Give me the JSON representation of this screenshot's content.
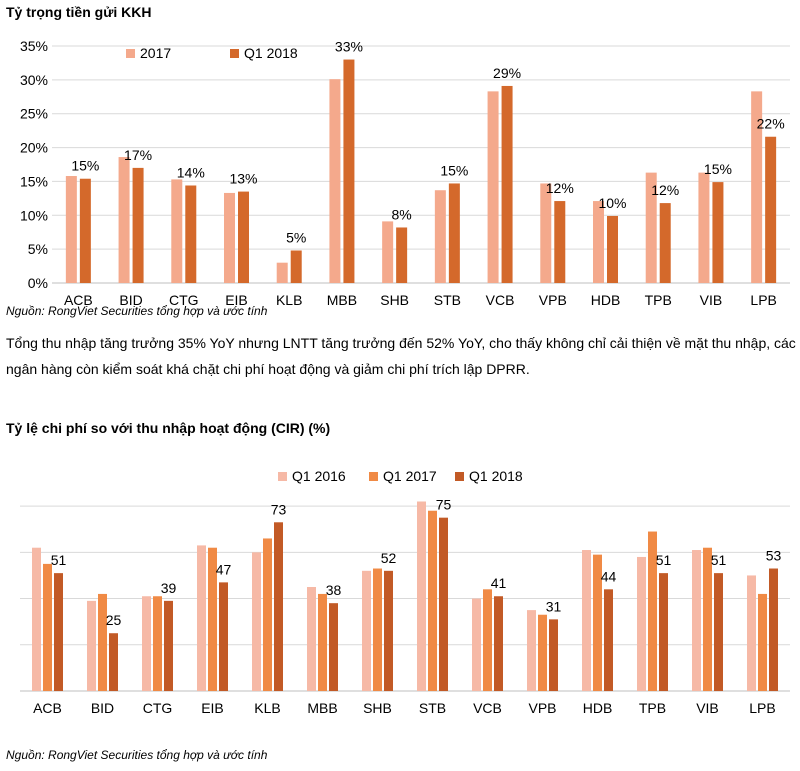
{
  "charts": {
    "chart1": {
      "heading": "Tỷ trọng tiền gửi KKH",
      "source": "Nguồn: RongViet Securities tổng hợp và ước tính"
    },
    "chart2": {
      "heading": "Tỷ lệ chi phí so với thu nhập hoạt động (CIR) (%)",
      "source": "Nguồn: RongViet Securities tổng hợp và ước tính"
    }
  },
  "paragraph": "Tổng thu nhập tăng trưởng 35% YoY nhưng LNTT tăng trưởng đến 52% YoY, cho thấy không chỉ cải thiện về mặt thu nhập, các ngân hàng còn kiểm soát khá chặt chi phí hoạt động và giảm chi phí trích lập DPRR.",
  "chart_data": [
    {
      "type": "bar",
      "title": "Tỷ trọng tiền gửi KKH",
      "categories": [
        "ACB",
        "BID",
        "CTG",
        "EIB",
        "KLB",
        "MBB",
        "SHB",
        "STB",
        "VCB",
        "VPB",
        "HDB",
        "TPB",
        "VIB",
        "LPB"
      ],
      "series": [
        {
          "name": "2017",
          "color": "#f4a98c",
          "values": [
            15.8,
            18.6,
            15.3,
            13.3,
            3.0,
            30.1,
            9.1,
            13.7,
            28.3,
            14.7,
            12.1,
            16.3,
            16.3,
            28.3
          ]
        },
        {
          "name": "Q1 2018",
          "color": "#d4692b",
          "values": [
            15.4,
            17.0,
            14.4,
            13.5,
            4.8,
            33.0,
            8.2,
            14.7,
            29.1,
            12.1,
            9.9,
            11.8,
            14.9,
            21.6
          ]
        }
      ],
      "data_labels": [
        "15%",
        "17%",
        "14%",
        "13%",
        "5%",
        "33%",
        "8%",
        "15%",
        "29%",
        "12%",
        "10%",
        "12%",
        "15%",
        "22%"
      ],
      "ylim": [
        0,
        35
      ],
      "yticks": [
        0,
        5,
        10,
        15,
        20,
        25,
        30,
        35
      ],
      "ytick_labels": [
        "0%",
        "5%",
        "10%",
        "15%",
        "20%",
        "25%",
        "30%",
        "35%"
      ],
      "grid": true,
      "legend": "top-left"
    },
    {
      "type": "bar",
      "title": "Tỷ lệ chi phí so với thu nhập hoạt động (CIR) (%)",
      "categories": [
        "ACB",
        "BID",
        "CTG",
        "EIB",
        "KLB",
        "MBB",
        "SHB",
        "STB",
        "VCB",
        "VPB",
        "HDB",
        "TPB",
        "VIB",
        "LPB"
      ],
      "series": [
        {
          "name": "Q1 2016",
          "color": "#f6b9a6",
          "values": [
            62,
            39,
            41,
            63,
            60,
            45,
            52,
            82,
            40,
            35,
            61,
            58,
            61,
            50
          ]
        },
        {
          "name": "Q1 2017",
          "color": "#f08a45",
          "values": [
            55,
            42,
            41,
            62,
            66,
            42,
            53,
            78,
            44,
            33,
            59,
            69,
            62,
            42
          ]
        },
        {
          "name": "Q1 2018",
          "color": "#c25a26",
          "values": [
            51,
            25,
            39,
            47,
            73,
            38,
            52,
            75,
            41,
            31,
            44,
            51,
            51,
            53
          ]
        }
      ],
      "data_labels": [
        "51",
        "25",
        "39",
        "47",
        "73",
        "38",
        "52",
        "75",
        "41",
        "31",
        "44",
        "51",
        "51",
        "53"
      ],
      "ylim": [
        0,
        90
      ],
      "yticks": [
        0,
        20,
        40,
        60,
        80
      ],
      "grid": true,
      "legend": "top-center"
    }
  ]
}
